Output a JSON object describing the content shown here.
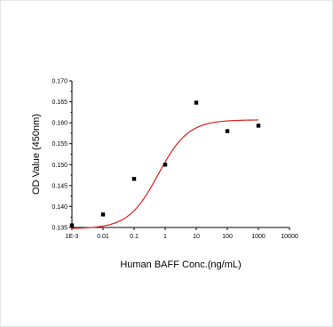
{
  "chart_data": {
    "type": "scatter",
    "xlabel": "Human BAFF Conc.(ng/mL)",
    "ylabel": "OD Value (450nm)",
    "x_scale": "log",
    "xlim": [
      0.001,
      10000
    ],
    "ylim": [
      0.135,
      0.17
    ],
    "x_ticks": [
      0.001,
      0.01,
      0.1,
      1,
      10,
      100,
      1000,
      10000
    ],
    "x_tick_labels": [
      "1E-3",
      "0.01",
      "0.1",
      "1",
      "10",
      "100",
      "1000",
      "10000"
    ],
    "y_ticks": [
      0.135,
      0.14,
      0.145,
      0.15,
      0.155,
      0.16,
      0.165,
      0.17
    ],
    "y_tick_labels": [
      "0.135",
      "0.140",
      "0.145",
      "0.150",
      "0.155",
      "0.160",
      "0.165",
      "0.170"
    ],
    "grid": false,
    "series": [
      {
        "kind": "points",
        "color": "#000000",
        "x": [
          0.001,
          0.01,
          0.1,
          1,
          10,
          100,
          1000
        ],
        "y": [
          0.1355,
          0.1381,
          0.1466,
          0.15,
          0.1648,
          0.158,
          0.1593
        ]
      },
      {
        "kind": "fit",
        "color": "#e02020",
        "model": "4PL",
        "bottom": 0.1347,
        "top": 0.1607,
        "ec50": 0.6,
        "hill": 0.9
      }
    ]
  }
}
